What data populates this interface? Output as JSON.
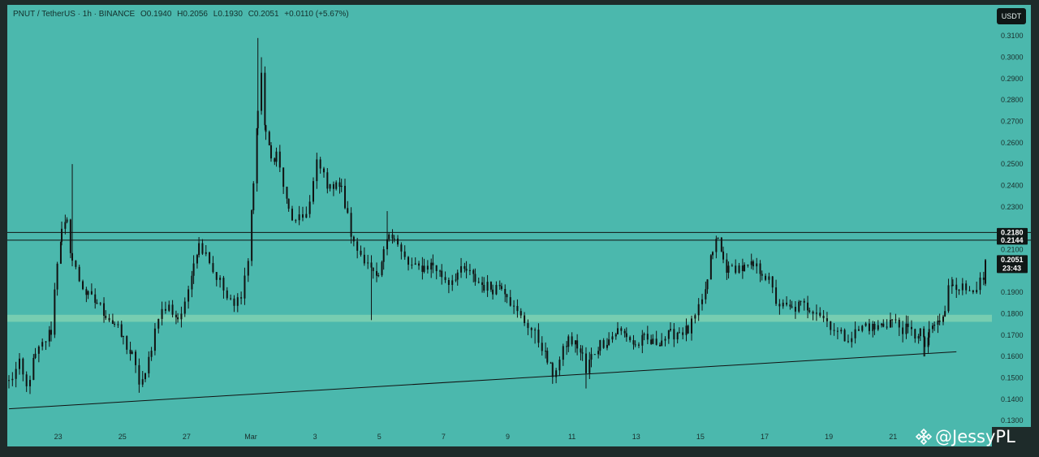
{
  "legend": {
    "symbol": "PNUT / TetherUS · 1h · BINANCE",
    "open": "O0.1940",
    "high": "H0.2056",
    "low": "L0.1930",
    "close": "C0.2051",
    "change": "+0.0110 (+5.67%)"
  },
  "currency_button": "USDT",
  "watermark": "@JessyPL",
  "colors": {
    "background": "#4bb8ad",
    "zone": "#77cdb1",
    "candle": "#111111",
    "lines": "#111111",
    "frame": "#1e2b2a"
  },
  "chart_data": {
    "type": "candlestick",
    "symbol": "PNUT / TetherUS",
    "interval": "1h",
    "exchange": "BINANCE",
    "ohlc_last": {
      "open": 0.194,
      "high": 0.2056,
      "low": 0.193,
      "close": 0.2051,
      "change": 0.011,
      "change_pct": 5.67
    },
    "y_axis": {
      "ticks": [
        "0.3100",
        "0.3000",
        "0.2900",
        "0.2800",
        "0.2700",
        "0.2600",
        "0.2500",
        "0.2400",
        "0.2300",
        "0.2100",
        "0.1900",
        "0.1800",
        "0.1700",
        "0.1600",
        "0.1500",
        "0.1400",
        "0.1300"
      ],
      "range": [
        0.127,
        0.3245
      ]
    },
    "x_axis": {
      "ticks": [
        {
          "label": "23",
          "idx": 56
        },
        {
          "label": "25",
          "idx": 129
        },
        {
          "label": "27",
          "idx": 202
        },
        {
          "label": "Mar",
          "idx": 275
        },
        {
          "label": "3",
          "idx": 348
        },
        {
          "label": "5",
          "idx": 421
        },
        {
          "label": "7",
          "idx": 494
        },
        {
          "label": "9",
          "idx": 567
        },
        {
          "label": "11",
          "idx": 640
        },
        {
          "label": "13",
          "idx": 713
        },
        {
          "label": "15",
          "idx": 786
        },
        {
          "label": "17",
          "idx": 859
        },
        {
          "label": "19",
          "idx": 932
        },
        {
          "label": "21",
          "idx": 1005
        }
      ]
    },
    "horizontal_lines": [
      0.218,
      0.2144
    ],
    "price_labels": [
      {
        "text": "0.2180",
        "value": 0.218
      },
      {
        "text": "0.2144",
        "value": 0.2144
      },
      {
        "text": "0.2051",
        "value": 0.2051,
        "sub": "23:43"
      }
    ],
    "zone": {
      "low": 0.1762,
      "high": 0.1795
    },
    "trendline": {
      "start": {
        "idx": 0,
        "value": 0.1355
      },
      "end": {
        "idx": 1077,
        "value": 0.1622
      }
    },
    "anchors": [
      [
        0,
        0.148
      ],
      [
        12,
        0.156
      ],
      [
        20,
        0.145
      ],
      [
        30,
        0.16
      ],
      [
        42,
        0.168
      ],
      [
        48,
        0.172
      ],
      [
        55,
        0.205
      ],
      [
        60,
        0.218
      ],
      [
        66,
        0.222
      ],
      [
        72,
        0.205
      ],
      [
        80,
        0.196
      ],
      [
        90,
        0.188
      ],
      [
        100,
        0.185
      ],
      [
        110,
        0.18
      ],
      [
        120,
        0.175
      ],
      [
        130,
        0.168
      ],
      [
        140,
        0.16
      ],
      [
        148,
        0.148
      ],
      [
        155,
        0.15
      ],
      [
        162,
        0.165
      ],
      [
        170,
        0.18
      ],
      [
        182,
        0.183
      ],
      [
        192,
        0.178
      ],
      [
        200,
        0.183
      ],
      [
        210,
        0.205
      ],
      [
        216,
        0.212
      ],
      [
        224,
        0.21
      ],
      [
        232,
        0.2
      ],
      [
        240,
        0.195
      ],
      [
        248,
        0.187
      ],
      [
        256,
        0.183
      ],
      [
        264,
        0.19
      ],
      [
        272,
        0.205
      ],
      [
        278,
        0.24
      ],
      [
        283,
        0.275
      ],
      [
        287,
        0.29
      ],
      [
        292,
        0.265
      ],
      [
        298,
        0.252
      ],
      [
        304,
        0.255
      ],
      [
        312,
        0.24
      ],
      [
        318,
        0.228
      ],
      [
        326,
        0.222
      ],
      [
        334,
        0.225
      ],
      [
        342,
        0.232
      ],
      [
        350,
        0.25
      ],
      [
        358,
        0.245
      ],
      [
        365,
        0.238
      ],
      [
        372,
        0.243
      ],
      [
        378,
        0.238
      ],
      [
        385,
        0.225
      ],
      [
        392,
        0.212
      ],
      [
        400,
        0.208
      ],
      [
        408,
        0.205
      ],
      [
        414,
        0.198
      ],
      [
        420,
        0.195
      ],
      [
        426,
        0.208
      ],
      [
        432,
        0.22
      ],
      [
        438,
        0.215
      ],
      [
        446,
        0.208
      ],
      [
        454,
        0.203
      ],
      [
        462,
        0.201
      ],
      [
        472,
        0.202
      ],
      [
        482,
        0.203
      ],
      [
        492,
        0.198
      ],
      [
        500,
        0.195
      ],
      [
        510,
        0.199
      ],
      [
        520,
        0.2
      ],
      [
        530,
        0.196
      ],
      [
        540,
        0.193
      ],
      [
        550,
        0.192
      ],
      [
        560,
        0.194
      ],
      [
        566,
        0.19
      ],
      [
        574,
        0.182
      ],
      [
        582,
        0.178
      ],
      [
        590,
        0.175
      ],
      [
        598,
        0.17
      ],
      [
        606,
        0.165
      ],
      [
        612,
        0.158
      ],
      [
        618,
        0.152
      ],
      [
        626,
        0.158
      ],
      [
        636,
        0.168
      ],
      [
        646,
        0.165
      ],
      [
        652,
        0.16
      ],
      [
        656,
        0.152
      ],
      [
        662,
        0.16
      ],
      [
        672,
        0.166
      ],
      [
        682,
        0.168
      ],
      [
        692,
        0.172
      ],
      [
        702,
        0.17
      ],
      [
        712,
        0.165
      ],
      [
        722,
        0.168
      ],
      [
        732,
        0.166
      ],
      [
        742,
        0.168
      ],
      [
        752,
        0.17
      ],
      [
        762,
        0.172
      ],
      [
        772,
        0.172
      ],
      [
        780,
        0.178
      ],
      [
        788,
        0.185
      ],
      [
        794,
        0.195
      ],
      [
        800,
        0.21
      ],
      [
        806,
        0.215
      ],
      [
        812,
        0.205
      ],
      [
        818,
        0.2
      ],
      [
        826,
        0.202
      ],
      [
        836,
        0.201
      ],
      [
        846,
        0.202
      ],
      [
        856,
        0.2
      ],
      [
        864,
        0.195
      ],
      [
        872,
        0.186
      ],
      [
        880,
        0.183
      ],
      [
        890,
        0.182
      ],
      [
        900,
        0.184
      ],
      [
        910,
        0.183
      ],
      [
        918,
        0.182
      ],
      [
        926,
        0.178
      ],
      [
        934,
        0.175
      ],
      [
        942,
        0.171
      ],
      [
        950,
        0.169
      ],
      [
        958,
        0.17
      ],
      [
        966,
        0.172
      ],
      [
        974,
        0.175
      ],
      [
        984,
        0.173
      ],
      [
        994,
        0.175
      ],
      [
        1004,
        0.177
      ],
      [
        1012,
        0.174
      ],
      [
        1022,
        0.172
      ],
      [
        1030,
        0.17
      ],
      [
        1036,
        0.172
      ],
      [
        1041,
        0.165
      ],
      [
        1046,
        0.17
      ],
      [
        1052,
        0.175
      ],
      [
        1058,
        0.176
      ],
      [
        1064,
        0.18
      ],
      [
        1068,
        0.192
      ],
      [
        1073,
        0.195
      ],
      [
        1080,
        0.193
      ],
      [
        1088,
        0.191
      ],
      [
        1096,
        0.193
      ],
      [
        1104,
        0.194
      ],
      [
        1110,
        0.194
      ]
    ]
  }
}
